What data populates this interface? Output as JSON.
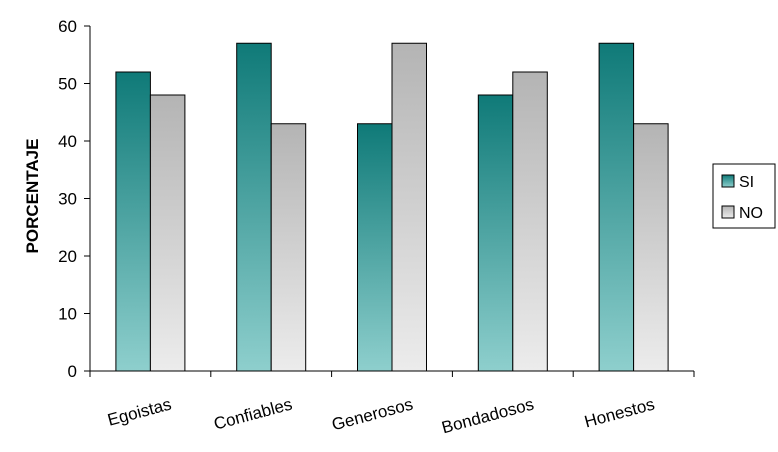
{
  "chart_data": {
    "type": "bar",
    "title": "",
    "xlabel": "",
    "ylabel": "PORCENTAJE",
    "ylim": [
      0,
      60
    ],
    "yticks": [
      0,
      10,
      20,
      30,
      40,
      50,
      60
    ],
    "categories": [
      "Egoistas",
      "Confiables",
      "Generosos",
      "Bondadosos",
      "Honestos"
    ],
    "series": [
      {
        "name": "SI",
        "values": [
          52,
          57,
          43,
          48,
          57
        ]
      },
      {
        "name": "NO",
        "values": [
          48,
          43,
          57,
          52,
          43
        ]
      }
    ],
    "legend_position": "right",
    "grid": false,
    "colors": {
      "SI_top": "#0f7a78",
      "SI_bottom": "#8ecfcd",
      "NO_top": "#b4b4b4",
      "NO_bottom": "#ececec"
    }
  }
}
